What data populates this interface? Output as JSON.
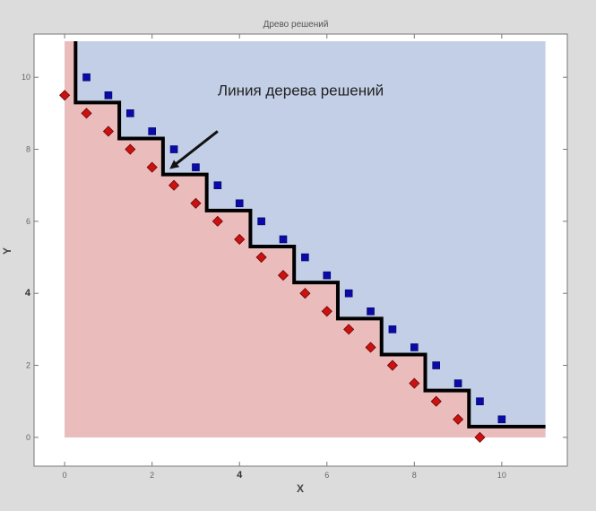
{
  "chart_data": {
    "type": "scatter",
    "title": "Древо решений",
    "xlabel": "X",
    "ylabel": "Y",
    "xlim": [
      -0.7,
      11.5
    ],
    "ylim": [
      -0.8,
      11.2
    ],
    "x_ticks": [
      {
        "value": 0,
        "label": "0"
      },
      {
        "value": 2,
        "label": "2"
      },
      {
        "value": 4,
        "label": "4"
      },
      {
        "value": 6,
        "label": "6"
      },
      {
        "value": 8,
        "label": "8"
      },
      {
        "value": 10,
        "label": "10"
      }
    ],
    "y_ticks": [
      {
        "value": 0,
        "label": "0"
      },
      {
        "value": 2,
        "label": "2"
      },
      {
        "value": 4,
        "label": "4"
      },
      {
        "value": 6,
        "label": "6"
      },
      {
        "value": 8,
        "label": "8"
      },
      {
        "value": 10,
        "label": "10"
      }
    ],
    "grid": false,
    "regions": {
      "upper_color": "#c3cfe6",
      "lower_color": "#ebbcbc",
      "extent": {
        "x": [
          0,
          11
        ],
        "y": [
          0,
          11
        ]
      }
    },
    "series": [
      {
        "marker": "square",
        "color": "#0a0aa8",
        "points": [
          [
            0.5,
            10
          ],
          [
            1,
            9.5
          ],
          [
            1.5,
            9
          ],
          [
            2,
            8.5
          ],
          [
            2.5,
            8
          ],
          [
            3,
            7.5
          ],
          [
            3.5,
            7
          ],
          [
            4,
            6.5
          ],
          [
            4.5,
            6
          ],
          [
            5,
            5.5
          ],
          [
            5.5,
            5
          ],
          [
            6,
            4.5
          ],
          [
            6.5,
            4
          ],
          [
            7,
            3.5
          ],
          [
            7.5,
            3
          ],
          [
            8,
            2.5
          ],
          [
            8.5,
            2
          ],
          [
            9,
            1.5
          ],
          [
            9.5,
            1
          ],
          [
            10,
            0.5
          ]
        ]
      },
      {
        "marker": "diamond",
        "color": "#cc1111",
        "points": [
          [
            0,
            9.5
          ],
          [
            0.5,
            9
          ],
          [
            1,
            8.5
          ],
          [
            1.5,
            8
          ],
          [
            2,
            7.5
          ],
          [
            2.5,
            7
          ],
          [
            3,
            6.5
          ],
          [
            3.5,
            6
          ],
          [
            4,
            5.5
          ],
          [
            4.5,
            5
          ],
          [
            5,
            4.5
          ],
          [
            5.5,
            4
          ],
          [
            6,
            3.5
          ],
          [
            6.5,
            3
          ],
          [
            7,
            2.5
          ],
          [
            7.5,
            2
          ],
          [
            8,
            1.5
          ],
          [
            8.5,
            1
          ],
          [
            9,
            0.5
          ],
          [
            9.5,
            0
          ]
        ]
      }
    ],
    "decision_boundary": {
      "color": "#000000",
      "points": [
        [
          0.25,
          11
        ],
        [
          0.25,
          9.3
        ],
        [
          1.25,
          9.3
        ],
        [
          1.25,
          8.3
        ],
        [
          2.25,
          8.3
        ],
        [
          2.25,
          7.3
        ],
        [
          3.25,
          7.3
        ],
        [
          3.25,
          6.3
        ],
        [
          4.25,
          6.3
        ],
        [
          4.25,
          5.3
        ],
        [
          5.25,
          5.3
        ],
        [
          5.25,
          4.3
        ],
        [
          6.25,
          4.3
        ],
        [
          6.25,
          3.3
        ],
        [
          7.25,
          3.3
        ],
        [
          7.25,
          2.3
        ],
        [
          8.25,
          2.3
        ],
        [
          8.25,
          1.3
        ],
        [
          9.25,
          1.3
        ],
        [
          9.25,
          0.3
        ],
        [
          11,
          0.3
        ]
      ]
    },
    "annotations": [
      {
        "text": "Линия дерева решений",
        "text_at": [
          5.4,
          9.5
        ],
        "arrow_from": [
          3.5,
          8.5
        ],
        "arrow_to": [
          2.45,
          7.5
        ]
      }
    ]
  }
}
